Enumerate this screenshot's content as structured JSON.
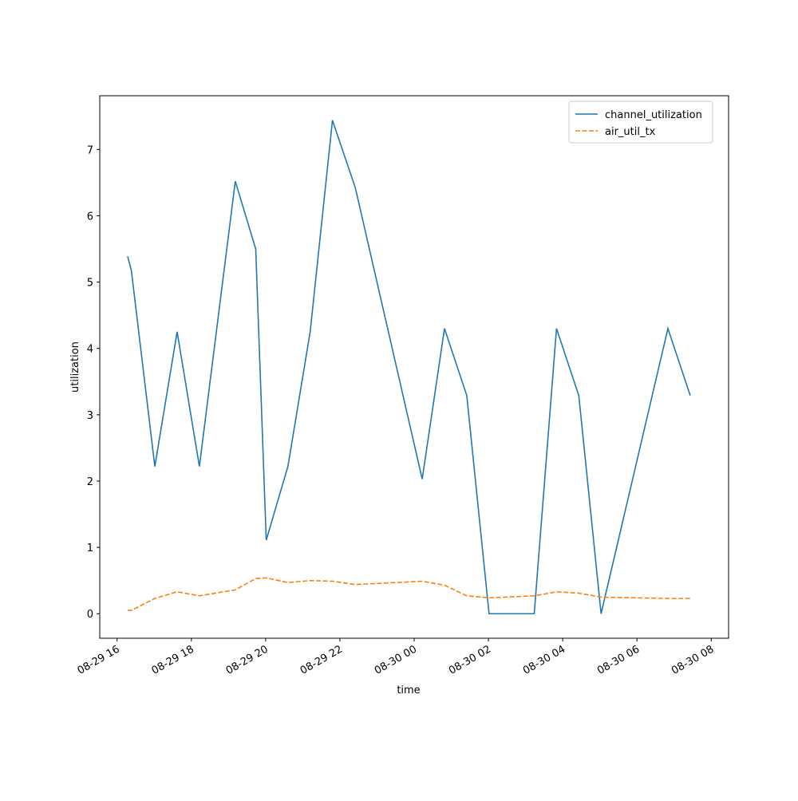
{
  "chart_data": {
    "type": "line",
    "xlabel": "time",
    "ylabel": "utilization",
    "x": [
      "08-29 16:17",
      "08-29 16:23",
      "08-29 17:01",
      "08-29 17:37",
      "08-29 18:13",
      "08-29 19:11",
      "08-29 19:44",
      "08-29 20:01",
      "08-29 20:36",
      "08-29 21:12",
      "08-29 21:48",
      "08-29 22:25",
      "08-30 00:13",
      "08-30 00:49",
      "08-30 01:25",
      "08-30 02:01",
      "08-30 03:14",
      "08-30 03:50",
      "08-30 04:26",
      "08-30 05:02",
      "08-30 06:50",
      "08-30 07:26"
    ],
    "series": [
      {
        "name": "channel_utilization",
        "color": "#1f77b4",
        "dash": false,
        "values": [
          5.39,
          5.18,
          2.22,
          4.25,
          2.22,
          6.52,
          5.5,
          1.11,
          2.22,
          4.25,
          7.44,
          6.42,
          2.03,
          4.3,
          3.29,
          0,
          0,
          4.3,
          3.29,
          0,
          4.3,
          3.29
        ]
      },
      {
        "name": "air_util_tx",
        "color": "#ff7f0e",
        "dash": true,
        "values": [
          0.05,
          0.05,
          0.23,
          0.33,
          0.27,
          0.36,
          0.53,
          0.54,
          0.47,
          0.5,
          0.49,
          0.44,
          0.49,
          0.43,
          0.27,
          0.24,
          0.27,
          0.33,
          0.31,
          0.25,
          0.23,
          0.23
        ]
      }
    ],
    "xlim": [
      "08-29 15:32",
      "08-30 08:28"
    ],
    "xticks": [
      {
        "value": "08-29 16:00",
        "label": "08-29 16"
      },
      {
        "value": "08-29 18:00",
        "label": "08-29 18"
      },
      {
        "value": "08-29 20:00",
        "label": "08-29 20"
      },
      {
        "value": "08-29 22:00",
        "label": "08-29 22"
      },
      {
        "value": "08-30 00:00",
        "label": "08-30 00"
      },
      {
        "value": "08-30 02:00",
        "label": "08-30 02"
      },
      {
        "value": "08-30 04:00",
        "label": "08-30 04"
      },
      {
        "value": "08-30 06:00",
        "label": "08-30 06"
      },
      {
        "value": "08-30 08:00",
        "label": "08-30 08"
      }
    ],
    "ylim": [
      -0.37,
      7.81
    ],
    "yticks": [
      0,
      1,
      2,
      3,
      4,
      5,
      6,
      7
    ],
    "grid": false,
    "legend": "upper right"
  }
}
